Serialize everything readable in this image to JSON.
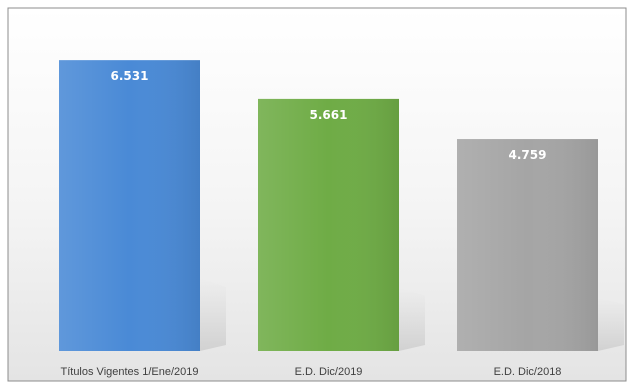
{
  "chart_data": {
    "type": "bar",
    "categories": [
      "Títulos Vigentes 1/Ene/2019",
      "E.D. Dic/2019",
      "E.D. Dic/2018"
    ],
    "values": [
      6531,
      5661,
      4759
    ],
    "value_labels": [
      "6.531",
      "5.661",
      "4.759"
    ],
    "colors": [
      "#4a8ad6",
      "#6fac46",
      "#a5a5a5"
    ],
    "title": "",
    "xlabel": "",
    "ylabel": "",
    "ylim": [
      0,
      7500
    ],
    "grid": false,
    "legend": "none"
  }
}
